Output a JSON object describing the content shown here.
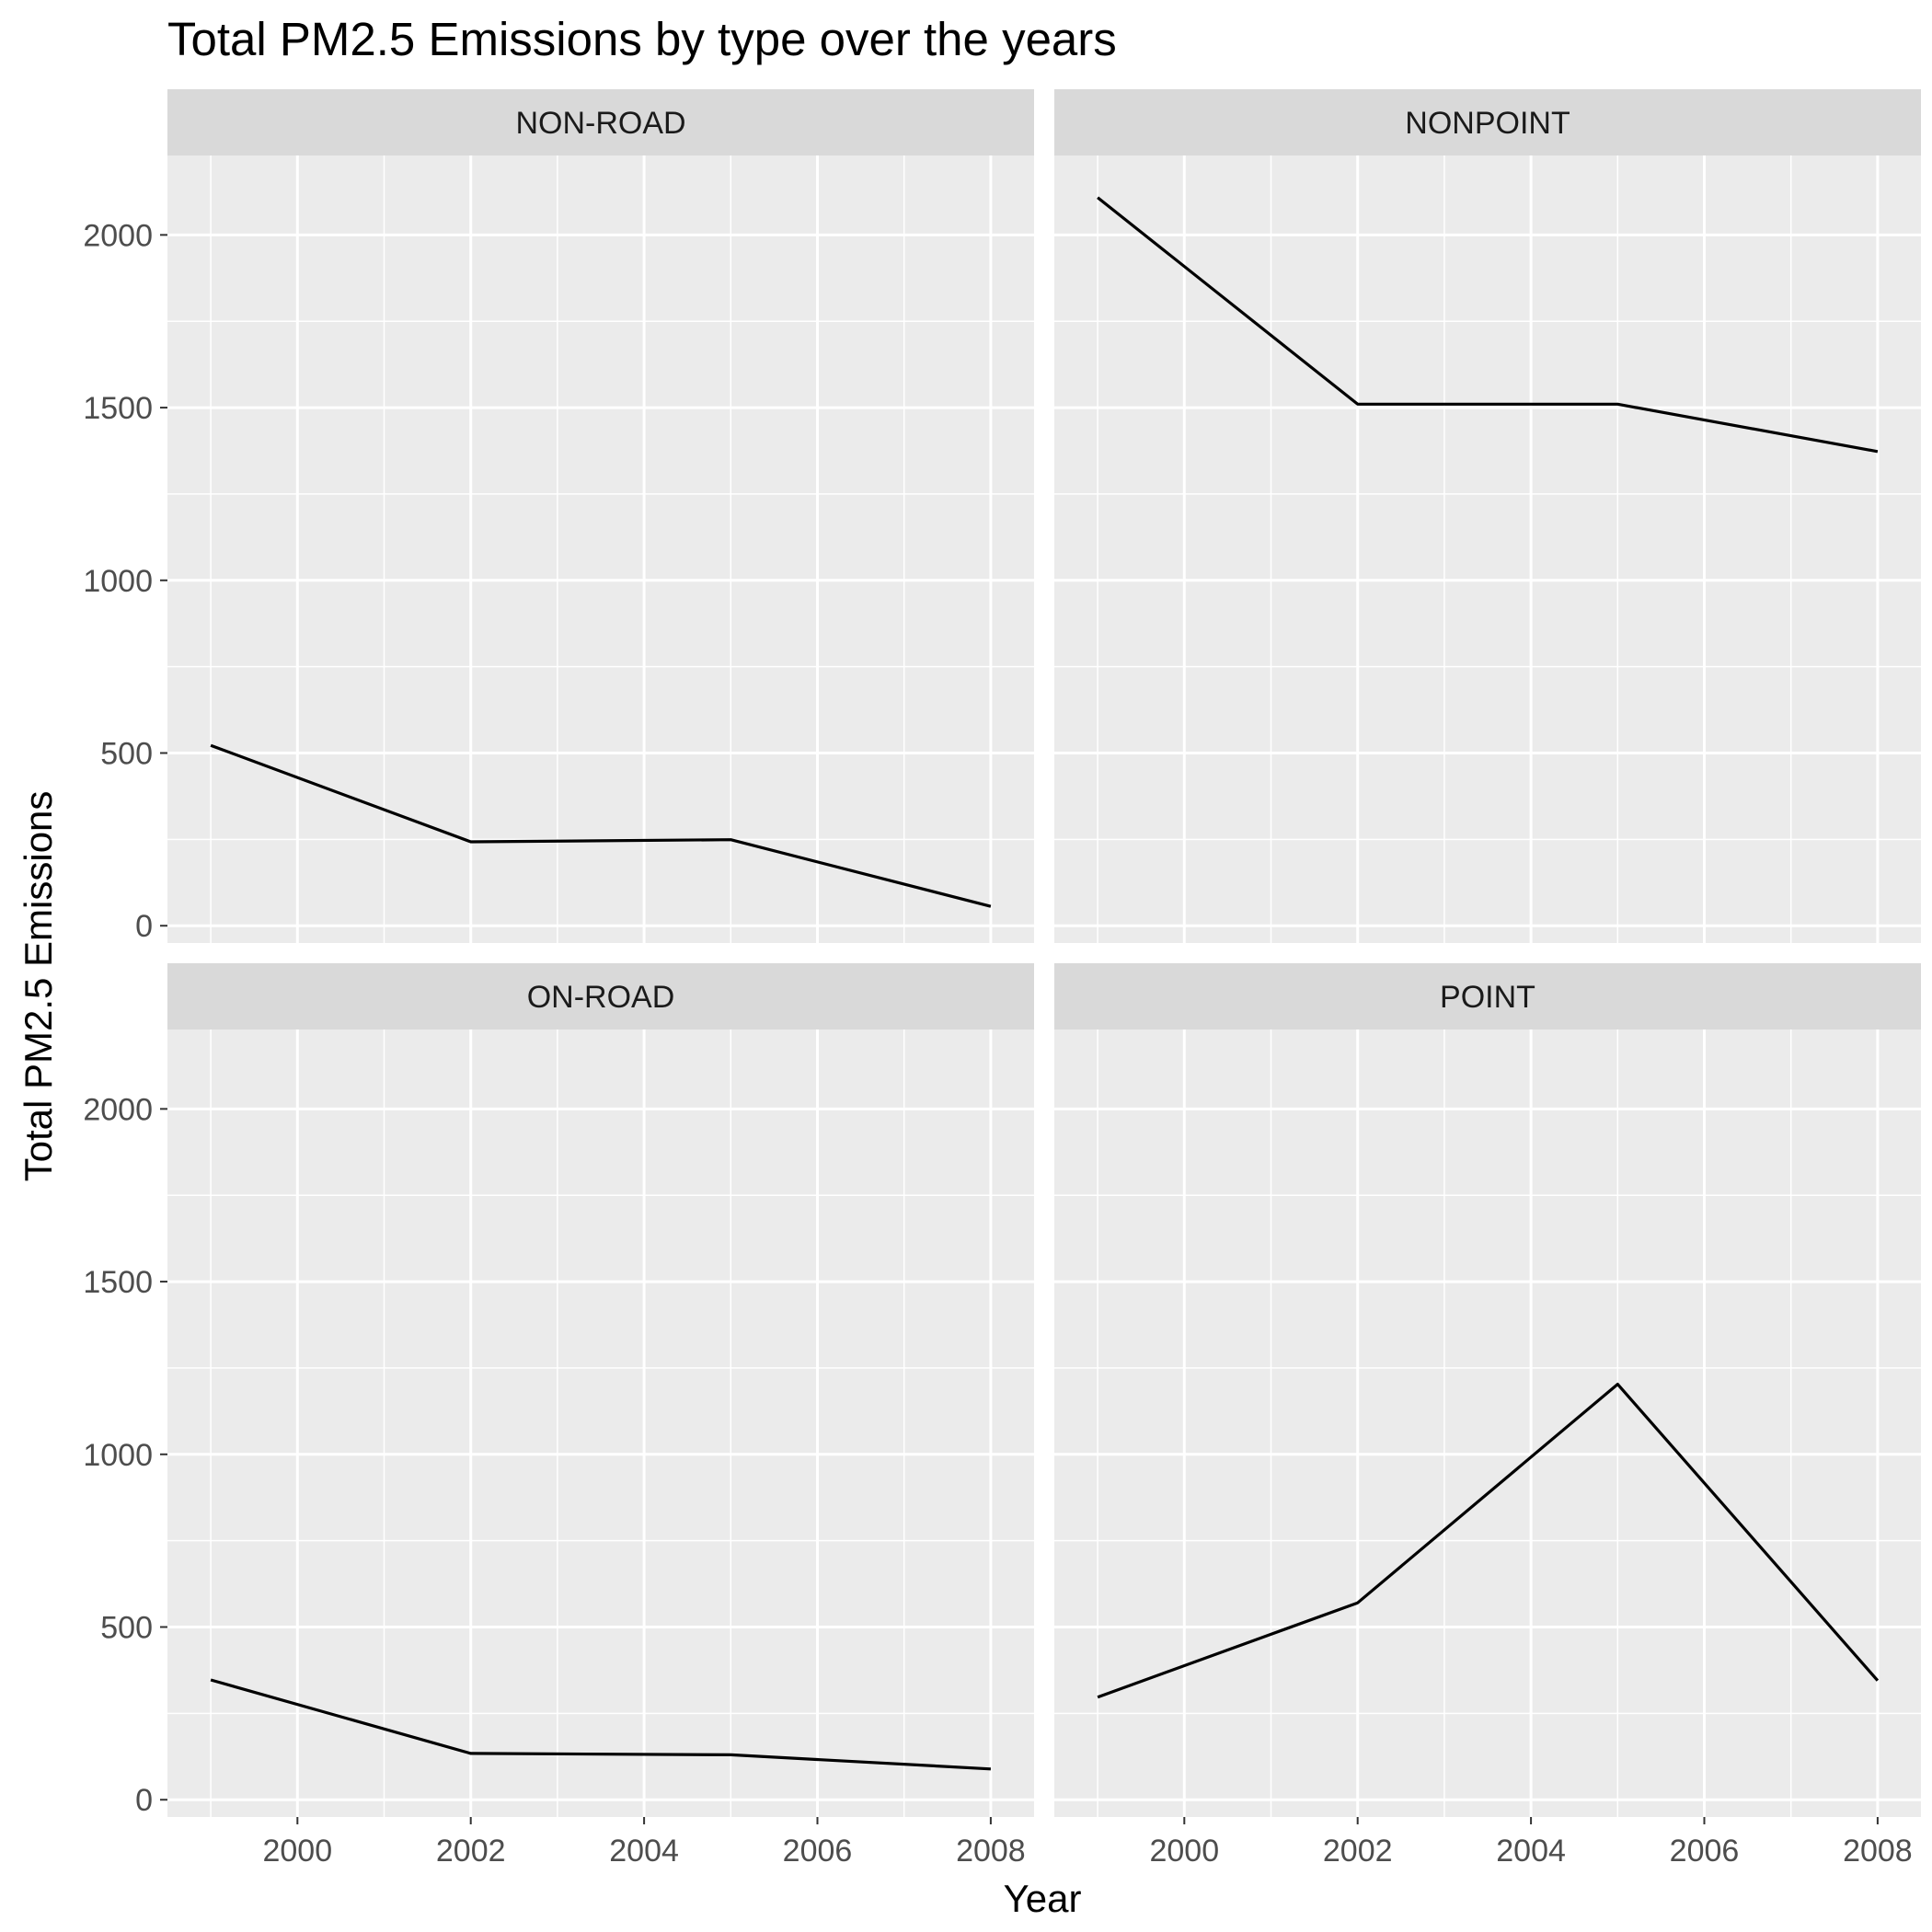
{
  "chart_data": {
    "type": "line",
    "title": "Total PM2.5 Emissions by type over the years",
    "xlabel": "Year",
    "ylabel": "Total PM2.5 Emissions",
    "x": [
      1999,
      2002,
      2005,
      2008
    ],
    "xlim": [
      1998.5,
      2008.5
    ],
    "ylim": [
      -50,
      2230
    ],
    "x_ticks": [
      2000,
      2002,
      2004,
      2006,
      2008
    ],
    "y_ticks": [
      0,
      500,
      1000,
      1500,
      2000
    ],
    "grid": true,
    "facets": [
      {
        "name": "NON-ROAD",
        "values": [
          522,
          243,
          249,
          56
        ]
      },
      {
        "name": "NONPOINT",
        "values": [
          2108,
          1510,
          1510,
          1373
        ]
      },
      {
        "name": "ON-ROAD",
        "values": [
          347,
          134,
          130,
          89
        ]
      },
      {
        "name": "POINT",
        "values": [
          297,
          570,
          1203,
          345
        ]
      }
    ],
    "colors": {
      "line": "#000000",
      "panel": "#ebebeb",
      "strip": "#d9d9d9",
      "grid": "#ffffff"
    }
  }
}
